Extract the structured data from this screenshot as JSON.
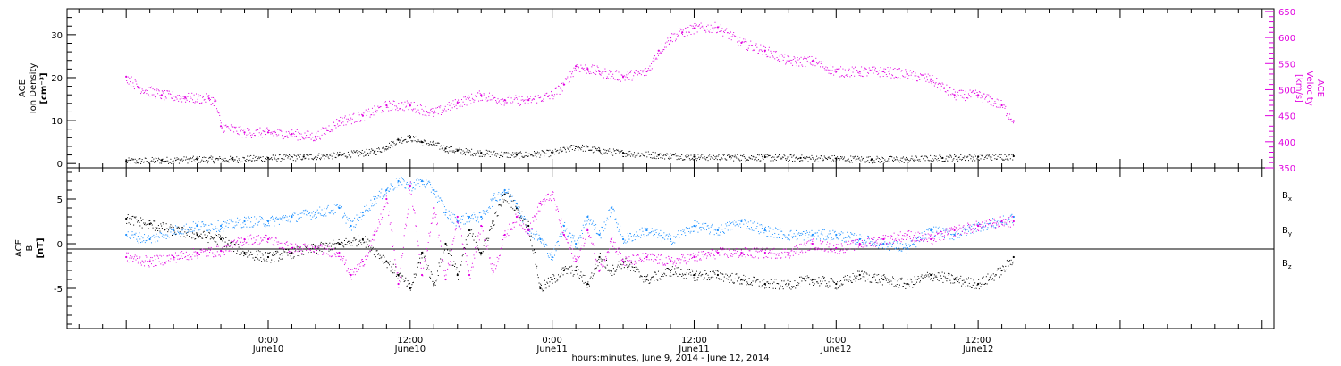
{
  "chart_data": [
    {
      "type": "scatter",
      "panel": "plasma",
      "left_axis": {
        "label_line1": "ACE",
        "label_line2": "Ion Density",
        "unit": "[cm⁻³]",
        "ylim": [
          -1,
          36
        ],
        "ticks": [
          0,
          10,
          20,
          30
        ]
      },
      "right_axis": {
        "label_line1": "ACE",
        "label_line2": "Velocity",
        "unit": "[km/s]",
        "ylim": [
          350,
          655
        ],
        "ticks": [
          350,
          400,
          450,
          500,
          550,
          600,
          650
        ],
        "color": "#e000e0"
      },
      "series": [
        {
          "color": "#000000",
          "axis": "left",
          "x": [
            -12,
            -9,
            -6,
            -3,
            0,
            3,
            6,
            9,
            10,
            11,
            12,
            13,
            14,
            15,
            16,
            18,
            21,
            24,
            26,
            28,
            30,
            33,
            36,
            39,
            42,
            45,
            48,
            51,
            54,
            57,
            60,
            63
          ],
          "y": [
            0.6,
            0.8,
            1.0,
            1.0,
            1.3,
            1.6,
            2.0,
            2.8,
            4.0,
            5.5,
            6.0,
            5.0,
            4.5,
            3.5,
            3.0,
            2.5,
            2.0,
            2.5,
            4.0,
            3.0,
            2.5,
            2.0,
            1.6,
            1.5,
            1.5,
            1.3,
            1.2,
            1.0,
            1.0,
            1.3,
            1.6,
            1.7
          ]
        },
        {
          "color": "#e000e0",
          "axis": "right",
          "x": [
            -12,
            -11,
            -9,
            -7,
            -5,
            -4.5,
            -4,
            -2,
            0,
            2,
            4,
            6,
            8,
            10,
            12,
            14,
            16,
            18,
            20,
            22,
            24,
            25,
            26,
            27,
            28,
            30,
            32,
            33,
            34,
            35,
            36,
            38,
            40,
            42,
            44,
            46,
            48,
            50,
            52,
            54,
            56,
            58,
            60,
            62,
            63
          ],
          "y": [
            525,
            505,
            490,
            485,
            483,
            478,
            430,
            418,
            418,
            415,
            410,
            440,
            450,
            470,
            470,
            455,
            475,
            490,
            480,
            480,
            490,
            510,
            545,
            540,
            535,
            525,
            535,
            575,
            600,
            610,
            618,
            620,
            590,
            575,
            555,
            555,
            535,
            535,
            535,
            530,
            520,
            490,
            490,
            470,
            440
          ]
        }
      ]
    },
    {
      "type": "scatter",
      "panel": "magnetic-field",
      "left_axis": {
        "label_line1": "ACE",
        "label_line2": "B",
        "unit": "[nT]",
        "ylim": [
          -9.5,
          8.5
        ],
        "ticks": [
          -5,
          0,
          5
        ]
      },
      "zero_line": 0,
      "series": [
        {
          "name": "Bx",
          "color": "#000000",
          "x": [
            -12,
            -10,
            -8,
            -6,
            -4,
            -2,
            0,
            2,
            4,
            6,
            8,
            10,
            11,
            12,
            13,
            14,
            15,
            16,
            17,
            18,
            19,
            20,
            21,
            22,
            23,
            24,
            25,
            26,
            27,
            28,
            29,
            30,
            32,
            34,
            36,
            38,
            40,
            42,
            44,
            46,
            48,
            50,
            52,
            54,
            56,
            58,
            60,
            62,
            63
          ],
          "y": [
            2.8,
            2.2,
            1.5,
            1.0,
            0.5,
            -1.0,
            -1.5,
            -1.0,
            -0.5,
            0.0,
            0.5,
            -2.0,
            -3.5,
            -5.0,
            -1.0,
            -4.5,
            0.0,
            -3.5,
            1.5,
            -1.0,
            2.5,
            5.5,
            4.0,
            2.0,
            -5.0,
            -4.0,
            -3.0,
            -3.0,
            -4.5,
            -1.5,
            -3.0,
            -2.0,
            -4.0,
            -3.0,
            -3.5,
            -3.5,
            -4.0,
            -4.5,
            -4.5,
            -4.0,
            -4.5,
            -3.5,
            -4.0,
            -4.5,
            -3.5,
            -4.0,
            -4.5,
            -3.0,
            -1.5
          ]
        },
        {
          "name": "By",
          "color": "#1e90ff",
          "x": [
            -12,
            -10,
            -8,
            -6,
            -4,
            -2,
            0,
            2,
            4,
            6,
            7,
            8,
            9,
            10,
            11,
            12,
            13,
            14,
            15,
            16,
            17,
            18,
            19,
            20,
            21,
            22,
            23,
            24,
            25,
            26,
            27,
            28,
            29,
            30,
            32,
            34,
            36,
            38,
            40,
            42,
            44,
            46,
            48,
            50,
            52,
            54,
            56,
            58,
            60,
            62,
            63
          ],
          "y": [
            1.0,
            0.5,
            1.5,
            2.0,
            2.0,
            2.5,
            2.5,
            3.0,
            3.5,
            4.0,
            2.0,
            3.5,
            5.0,
            6.0,
            7.0,
            6.5,
            7.0,
            6.0,
            3.5,
            2.5,
            3.0,
            3.0,
            5.0,
            6.0,
            4.5,
            1.5,
            0.5,
            -1.5,
            2.0,
            0.0,
            3.0,
            1.0,
            4.0,
            0.5,
            1.5,
            0.5,
            2.0,
            1.5,
            2.5,
            1.5,
            1.0,
            1.0,
            1.0,
            0.5,
            0.0,
            -0.5,
            1.5,
            1.0,
            2.0,
            2.5,
            3.0
          ]
        },
        {
          "name": "Bz",
          "color": "#e000e0",
          "x": [
            -12,
            -10,
            -8,
            -6,
            -4,
            -2,
            0,
            2,
            4,
            6,
            7,
            8,
            9,
            10,
            11,
            12,
            13,
            14,
            15,
            16,
            17,
            18,
            19,
            20,
            21,
            22,
            23,
            24,
            25,
            26,
            27,
            28,
            29,
            30,
            32,
            34,
            36,
            38,
            40,
            42,
            44,
            46,
            48,
            50,
            52,
            54,
            56,
            58,
            60,
            62,
            63
          ],
          "y": [
            -1.5,
            -2.0,
            -1.5,
            -1.0,
            -0.8,
            0.5,
            0.5,
            -0.5,
            -0.5,
            -1.0,
            -3.5,
            -2.0,
            1.0,
            5.0,
            -4.5,
            6.5,
            -3.5,
            4.0,
            -4.0,
            3.0,
            -3.5,
            2.0,
            -3.0,
            1.0,
            3.0,
            1.5,
            4.5,
            5.5,
            1.0,
            -2.0,
            1.5,
            -3.0,
            0.5,
            -2.0,
            -1.5,
            -2.0,
            -1.5,
            -1.0,
            -1.0,
            -1.0,
            -1.0,
            0.0,
            -0.5,
            0.0,
            0.5,
            1.0,
            0.5,
            1.5,
            2.0,
            2.5,
            2.5
          ]
        }
      ],
      "legend": [
        "B",
        "B",
        "B"
      ],
      "legend_subscripts": [
        "x",
        "y",
        "z"
      ]
    }
  ],
  "x_axis": {
    "xlim": [
      -17,
      85
    ],
    "minor_tick_step": 2,
    "major_tick_step": 12,
    "tick_labels": [
      {
        "x": 0,
        "time": "0:00",
        "date": "June10"
      },
      {
        "x": 12,
        "time": "12:00",
        "date": "June10"
      },
      {
        "x": 24,
        "time": "0:00",
        "date": "June11"
      },
      {
        "x": 36,
        "time": "12:00",
        "date": "June11"
      },
      {
        "x": 48,
        "time": "0:00",
        "date": "June12"
      },
      {
        "x": 60,
        "time": "12:00",
        "date": "June12"
      }
    ],
    "label": "hours:minutes, June  9, 2014 - June 12, 2014"
  },
  "colors": {
    "black": "#000000",
    "magenta": "#e000e0",
    "blue": "#1e90ff"
  }
}
